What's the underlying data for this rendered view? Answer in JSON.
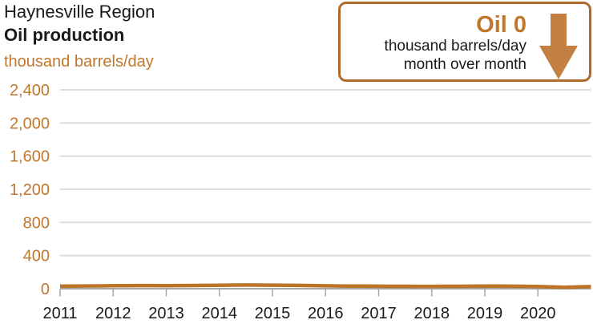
{
  "header": {
    "region": "Haynesville Region",
    "metric": "Oil production",
    "units": "thousand barrels/day"
  },
  "callout": {
    "value_label": "Oil 0",
    "unit_line1": "thousand barrels/day",
    "unit_line2": "month over month",
    "direction": "down"
  },
  "colors": {
    "accent_orange": "#c0772c",
    "line_orange": "#be7329",
    "arrow_orange": "#c47f42",
    "border_orange": "#b26a2c",
    "grid_gray": "#d9d9d9",
    "axis_gray": "#a6a6a6",
    "text_black": "#1a1a1a"
  },
  "chart_data": {
    "type": "line",
    "title": "Haynesville Region Oil production",
    "ylabel": "thousand barrels/day",
    "xlabel": "",
    "xlim": [
      2011,
      2021
    ],
    "ylim": [
      0,
      2400
    ],
    "x_ticks": [
      2011,
      2012,
      2013,
      2014,
      2015,
      2016,
      2017,
      2018,
      2019,
      2020
    ],
    "y_ticks": [
      0,
      400,
      800,
      1200,
      1600,
      2000,
      2400
    ],
    "grid": true,
    "legend": "none",
    "series": [
      {
        "name": "oil production",
        "color": "#be7329",
        "x": [
          2011.0,
          2011.25,
          2011.5,
          2011.75,
          2012.0,
          2012.25,
          2012.5,
          2012.75,
          2013.0,
          2013.25,
          2013.5,
          2013.75,
          2014.0,
          2014.25,
          2014.5,
          2014.75,
          2015.0,
          2015.25,
          2015.5,
          2015.75,
          2016.0,
          2016.25,
          2016.5,
          2016.75,
          2017.0,
          2017.25,
          2017.5,
          2017.75,
          2018.0,
          2018.25,
          2018.5,
          2018.75,
          2019.0,
          2019.25,
          2019.5,
          2019.75,
          2020.0,
          2020.25,
          2020.5,
          2020.75,
          2021.0
        ],
        "y": [
          30,
          32,
          33,
          34,
          36,
          37,
          38,
          38,
          37,
          38,
          39,
          40,
          42,
          44,
          45,
          44,
          43,
          42,
          40,
          38,
          35,
          33,
          32,
          31,
          30,
          29,
          29,
          28,
          28,
          29,
          29,
          30,
          31,
          31,
          30,
          29,
          27,
          21,
          17,
          22,
          25
        ]
      }
    ]
  }
}
